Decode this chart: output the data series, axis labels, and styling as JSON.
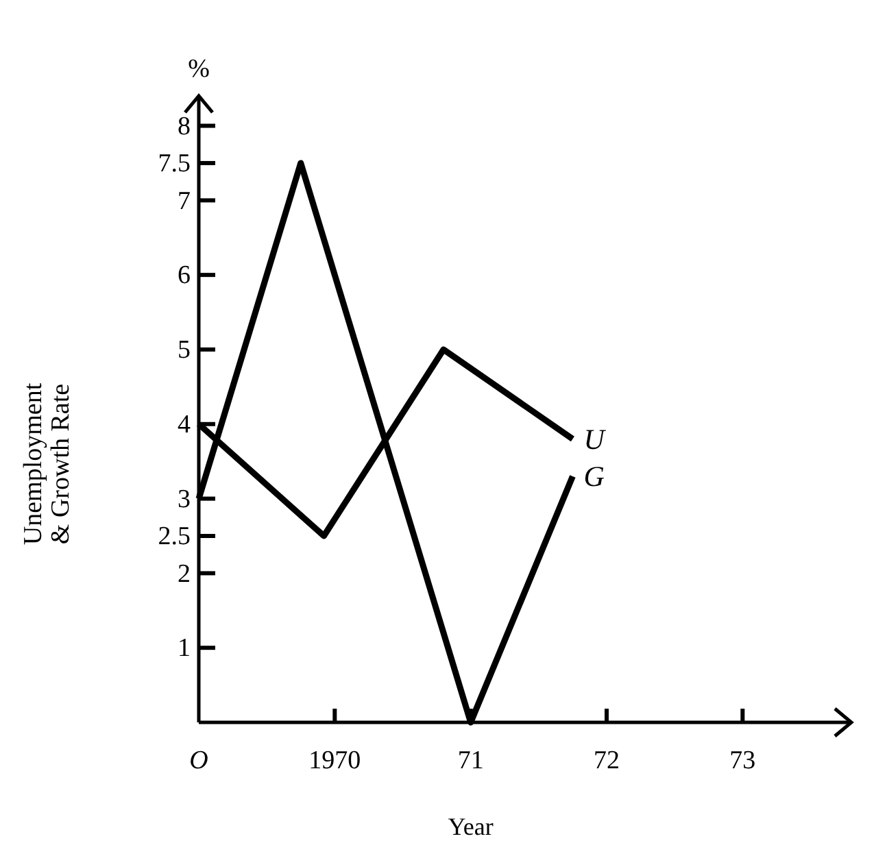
{
  "chart_data": {
    "type": "line",
    "xlabel": "Year",
    "ylabel": "Unemployment\n& Growth Rate",
    "annotations": [
      "%"
    ],
    "xlim": [
      1969,
      1973.8
    ],
    "xticks": [
      {
        "value": 1969,
        "label": "O"
      },
      1970,
      {
        "value": 1971,
        "label": "71"
      },
      {
        "value": 1972,
        "label": "72"
      },
      {
        "value": 1973,
        "label": "73"
      }
    ],
    "ylim": [
      0,
      8.4
    ],
    "yticks": [
      1,
      2,
      2.5,
      3,
      4,
      5,
      6,
      7,
      7.5,
      8
    ],
    "series": [
      {
        "name": "U",
        "color": "#000000",
        "x": [
          1969,
          1969.92,
          1970.8,
          1971.75
        ],
        "values": [
          4,
          2.5,
          5,
          3.8
        ]
      },
      {
        "name": "G",
        "color": "#000000",
        "x": [
          1969,
          1969.75,
          1971,
          1971.75
        ],
        "values": [
          3,
          7.5,
          0,
          3.3
        ]
      }
    ],
    "grid": false,
    "legend": false,
    "marker": "none",
    "line_style": "solid"
  }
}
